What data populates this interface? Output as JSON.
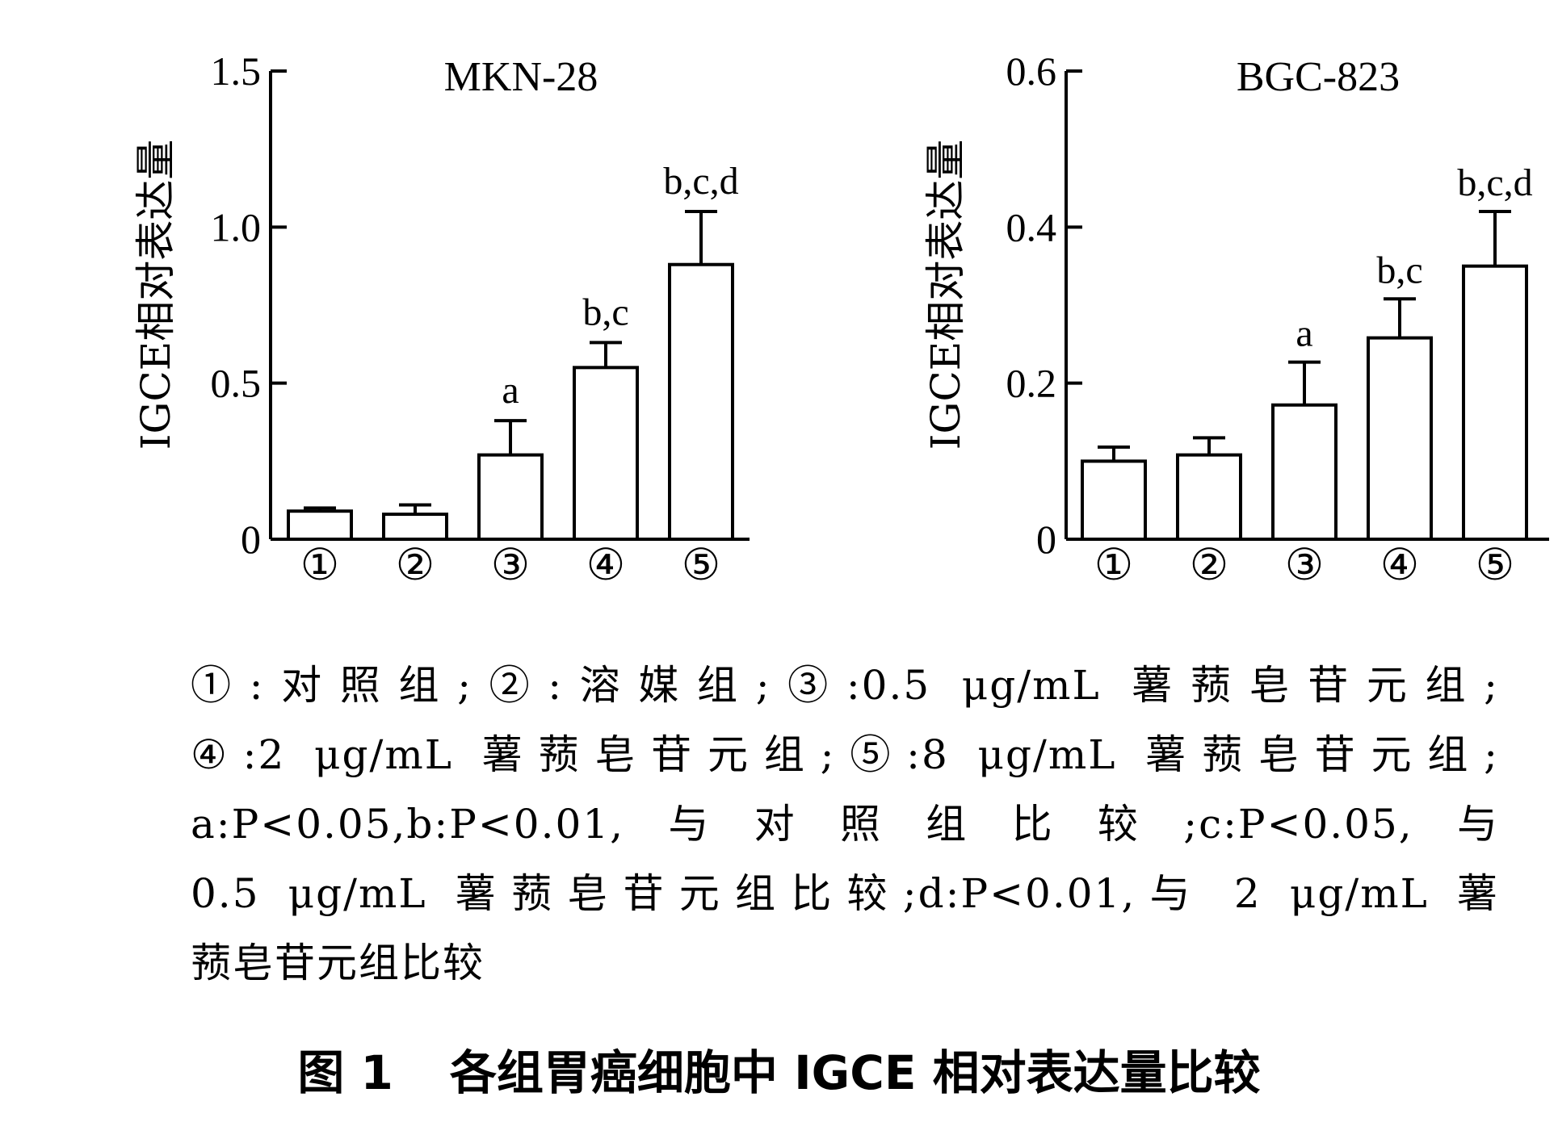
{
  "chart_data": [
    {
      "type": "bar",
      "title": "MKN-28",
      "ylabel": "IGCE相对表达量",
      "ylim": [
        0,
        1.5
      ],
      "yticks": [
        "0",
        "0.5",
        "1.0",
        "1.5"
      ],
      "yticks_values": [
        0,
        0.5,
        1.0,
        1.5
      ],
      "categories": [
        "①",
        "②",
        "③",
        "④",
        "⑤"
      ],
      "values": [
        0.09,
        0.08,
        0.27,
        0.55,
        0.88
      ],
      "errors": [
        0.01,
        0.03,
        0.11,
        0.08,
        0.17
      ],
      "annotations": [
        "",
        "",
        "a",
        "b,c",
        "b,c,d"
      ]
    },
    {
      "type": "bar",
      "title": "BGC-823",
      "ylabel": "IGCE相对表达量",
      "ylim": [
        0,
        0.6
      ],
      "yticks": [
        "0",
        "0.2",
        "0.4",
        "0.6"
      ],
      "yticks_values": [
        0,
        0.2,
        0.4,
        0.6
      ],
      "categories": [
        "①",
        "②",
        "③",
        "④",
        "⑤"
      ],
      "values": [
        0.1,
        0.108,
        0.172,
        0.258,
        0.35
      ],
      "errors": [
        0.018,
        0.022,
        0.055,
        0.05,
        0.07
      ],
      "annotations": [
        "",
        "",
        "a",
        "b,c",
        "b,c,d"
      ]
    }
  ],
  "legend_note": {
    "line1": "①:对照组;②:溶媒组;③:0.5 μg/mL 薯蓣皂苷元组;",
    "line2": "④:2 μg/mL 薯蓣皂苷元组;⑤:8 μg/mL 薯蓣皂苷元组;",
    "line3": "a:P<0.05,b:P<0.01,与对照组比较;c:P<0.05,与",
    "line4": "0.5 μg/mL 薯蓣皂苷元组比较;d:P<0.01,与 2 μg/mL 薯",
    "line5": "蓣皂苷元组比较"
  },
  "caption": {
    "number": "图 1",
    "text": "各组胃癌细胞中 IGCE 相对表达量比较"
  }
}
